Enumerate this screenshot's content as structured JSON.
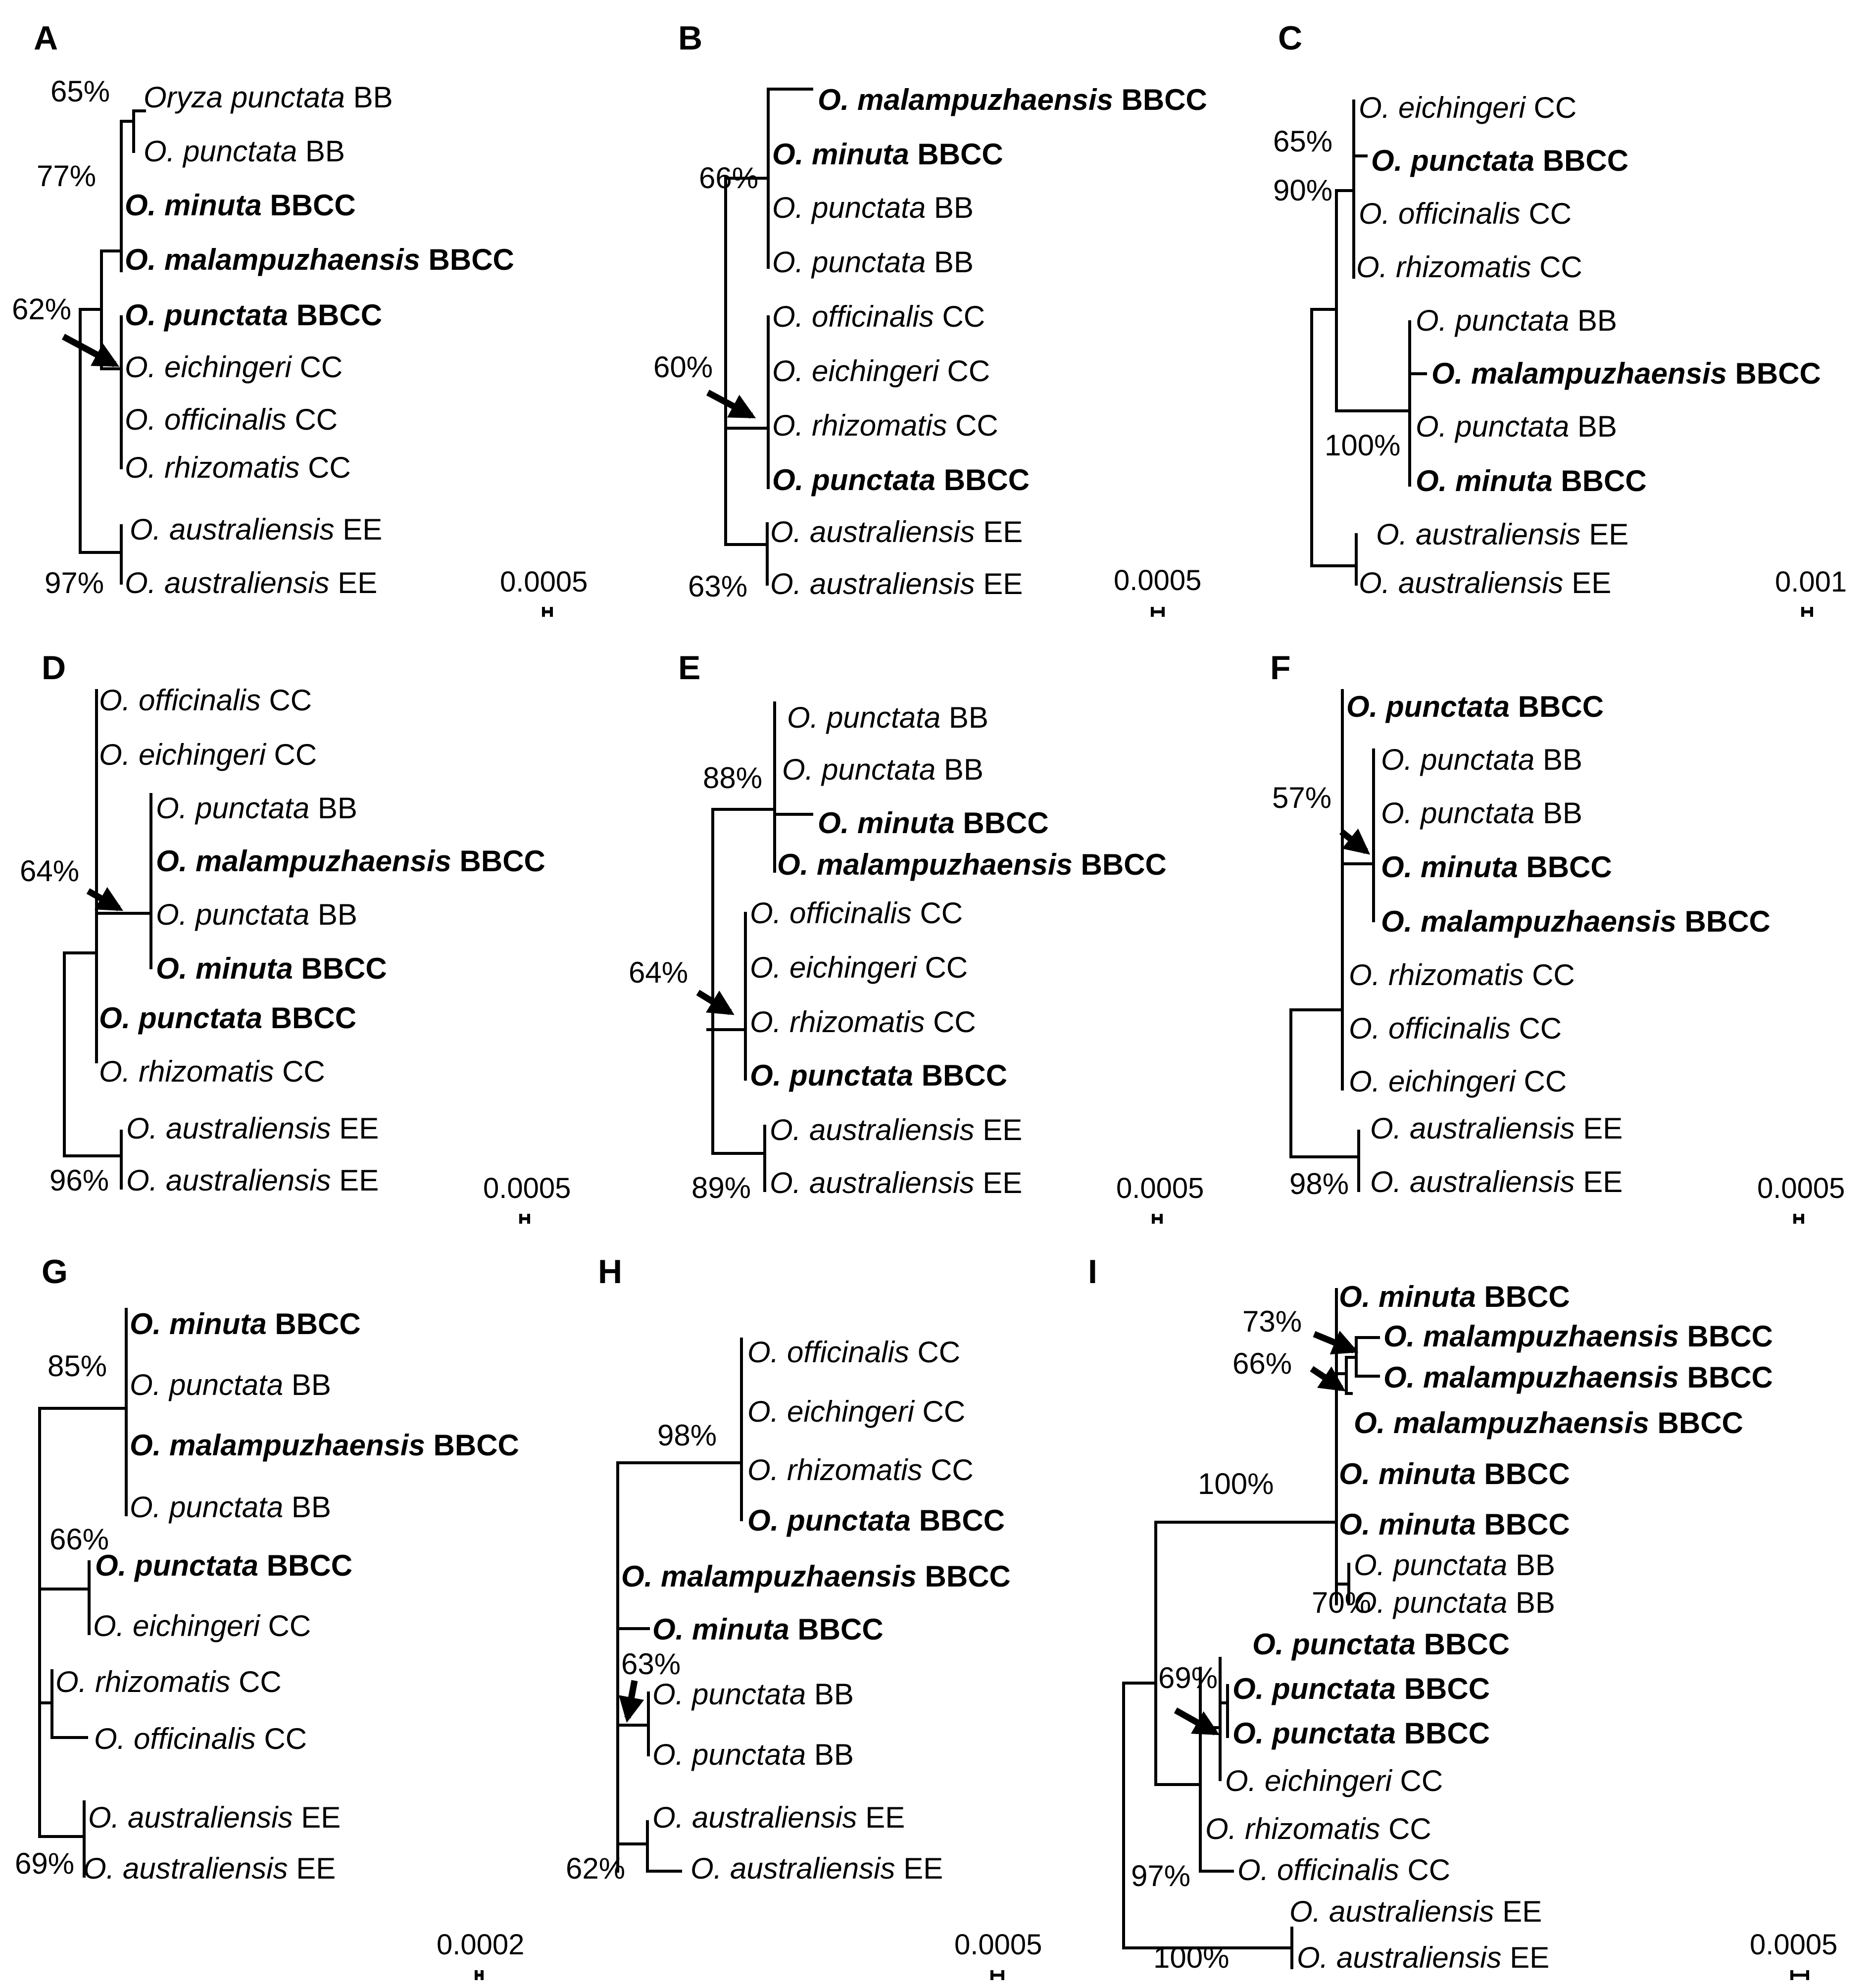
{
  "panels": [
    {
      "id": "A",
      "scale": "0.0005",
      "taxa": [
        {
          "genus": "Oryza",
          "species": "punctata",
          "genome": "BB",
          "bold": false
        },
        {
          "genus": "O.",
          "species": "punctata",
          "genome": "BB",
          "bold": false
        },
        {
          "genus": "O.",
          "species": "minuta",
          "genome": "BBCC",
          "bold": true
        },
        {
          "genus": "O.",
          "species": "malampuzhaensis",
          "genome": "BBCC",
          "bold": true
        },
        {
          "genus": "O.",
          "species": "punctata",
          "genome": "BBCC",
          "bold": true
        },
        {
          "genus": "O.",
          "species": "eichingeri",
          "genome": "CC",
          "bold": false
        },
        {
          "genus": "O.",
          "species": "officinalis",
          "genome": "CC",
          "bold": false
        },
        {
          "genus": "O.",
          "species": "rhizomatis",
          "genome": "CC",
          "bold": false
        },
        {
          "genus": "O.",
          "species": "australiensis",
          "genome": "EE",
          "bold": false
        },
        {
          "genus": "O.",
          "species": "australiensis",
          "genome": "EE",
          "bold": false
        }
      ],
      "support": [
        "65%",
        "77%",
        "62%",
        "97%"
      ]
    },
    {
      "id": "B",
      "scale": "0.0005",
      "taxa": [
        {
          "genus": "O.",
          "species": "malampuzhaensis",
          "genome": "BBCC",
          "bold": true
        },
        {
          "genus": "O.",
          "species": "minuta",
          "genome": "BBCC",
          "bold": true
        },
        {
          "genus": "O.",
          "species": "punctata",
          "genome": "BB",
          "bold": false
        },
        {
          "genus": "O.",
          "species": "punctata",
          "genome": "BB",
          "bold": false
        },
        {
          "genus": "O.",
          "species": "officinalis",
          "genome": "CC",
          "bold": false
        },
        {
          "genus": "O.",
          "species": "eichingeri",
          "genome": "CC",
          "bold": false
        },
        {
          "genus": "O.",
          "species": "rhizomatis",
          "genome": "CC",
          "bold": false
        },
        {
          "genus": "O.",
          "species": "punctata",
          "genome": "BBCC",
          "bold": true
        },
        {
          "genus": "O.",
          "species": "australiensis",
          "genome": "EE",
          "bold": false
        },
        {
          "genus": "O.",
          "species": "australiensis",
          "genome": "EE",
          "bold": false
        }
      ],
      "support": [
        "66%",
        "60%",
        "63%"
      ]
    },
    {
      "id": "C",
      "scale": "0.001",
      "taxa": [
        {
          "genus": "O.",
          "species": "eichingeri",
          "genome": "CC",
          "bold": false
        },
        {
          "genus": "O.",
          "species": "punctata",
          "genome": "BBCC",
          "bold": true
        },
        {
          "genus": "O.",
          "species": "officinalis",
          "genome": "CC",
          "bold": false
        },
        {
          "genus": "O.",
          "species": "rhizomatis",
          "genome": "CC",
          "bold": false
        },
        {
          "genus": "O.",
          "species": "punctata",
          "genome": "BB",
          "bold": false
        },
        {
          "genus": "O.",
          "species": "malampuzhaensis",
          "genome": "BBCC",
          "bold": true
        },
        {
          "genus": "O.",
          "species": "punctata",
          "genome": "BB",
          "bold": false
        },
        {
          "genus": "O.",
          "species": "minuta",
          "genome": "BBCC",
          "bold": true
        },
        {
          "genus": "O.",
          "species": "australiensis",
          "genome": "EE",
          "bold": false
        },
        {
          "genus": "O.",
          "species": "australiensis",
          "genome": "EE",
          "bold": false
        }
      ],
      "support": [
        "65%",
        "90%",
        "100%"
      ]
    },
    {
      "id": "D",
      "scale": "0.0005",
      "taxa": [
        {
          "genus": "O.",
          "species": "officinalis",
          "genome": "CC",
          "bold": false
        },
        {
          "genus": "O.",
          "species": "eichingeri",
          "genome": "CC",
          "bold": false
        },
        {
          "genus": "O.",
          "species": "punctata",
          "genome": "BB",
          "bold": false
        },
        {
          "genus": "O.",
          "species": "malampuzhaensis",
          "genome": "BBCC",
          "bold": true
        },
        {
          "genus": "O.",
          "species": "punctata",
          "genome": "BB",
          "bold": false
        },
        {
          "genus": "O.",
          "species": "minuta",
          "genome": "BBCC",
          "bold": true
        },
        {
          "genus": "O.",
          "species": "punctata",
          "genome": "BBCC",
          "bold": true
        },
        {
          "genus": "O.",
          "species": "rhizomatis",
          "genome": "CC",
          "bold": false
        },
        {
          "genus": "O.",
          "species": "australiensis",
          "genome": "EE",
          "bold": false
        },
        {
          "genus": "O.",
          "species": "australiensis",
          "genome": "EE",
          "bold": false
        }
      ],
      "support": [
        "64%",
        "96%"
      ]
    },
    {
      "id": "E",
      "scale": "0.0005",
      "taxa": [
        {
          "genus": "O.",
          "species": "punctata",
          "genome": "BB",
          "bold": false
        },
        {
          "genus": "O.",
          "species": "punctata",
          "genome": "BB",
          "bold": false
        },
        {
          "genus": "O.",
          "species": "minuta",
          "genome": "BBCC",
          "bold": true
        },
        {
          "genus": "O.",
          "species": "malampuzhaensis",
          "genome": "BBCC",
          "bold": true
        },
        {
          "genus": "O.",
          "species": "officinalis",
          "genome": "CC",
          "bold": false
        },
        {
          "genus": "O.",
          "species": "eichingeri",
          "genome": "CC",
          "bold": false
        },
        {
          "genus": "O.",
          "species": "rhizomatis",
          "genome": "CC",
          "bold": false
        },
        {
          "genus": "O.",
          "species": "punctata",
          "genome": "BBCC",
          "bold": true
        },
        {
          "genus": "O.",
          "species": "australiensis",
          "genome": "EE",
          "bold": false
        },
        {
          "genus": "O.",
          "species": "australiensis",
          "genome": "EE",
          "bold": false
        }
      ],
      "support": [
        "88%",
        "64%",
        "89%"
      ]
    },
    {
      "id": "F",
      "scale": "0.0005",
      "taxa": [
        {
          "genus": "O.",
          "species": "punctata",
          "genome": "BBCC",
          "bold": true
        },
        {
          "genus": "O.",
          "species": "punctata",
          "genome": "BB",
          "bold": false
        },
        {
          "genus": "O.",
          "species": "punctata",
          "genome": "BB",
          "bold": false
        },
        {
          "genus": "O.",
          "species": "minuta",
          "genome": "BBCC",
          "bold": true
        },
        {
          "genus": "O.",
          "species": "malampuzhaensis",
          "genome": "BBCC",
          "bold": true
        },
        {
          "genus": "O.",
          "species": "rhizomatis",
          "genome": "CC",
          "bold": false
        },
        {
          "genus": "O.",
          "species": "officinalis",
          "genome": "CC",
          "bold": false
        },
        {
          "genus": "O.",
          "species": "eichingeri",
          "genome": "CC",
          "bold": false
        },
        {
          "genus": "O.",
          "species": "australiensis",
          "genome": "EE",
          "bold": false
        },
        {
          "genus": "O.",
          "species": "australiensis",
          "genome": "EE",
          "bold": false
        }
      ],
      "support": [
        "57%",
        "98%"
      ]
    },
    {
      "id": "G",
      "scale": "0.0002",
      "taxa": [
        {
          "genus": "O.",
          "species": "minuta",
          "genome": "BBCC",
          "bold": true
        },
        {
          "genus": "O.",
          "species": "punctata",
          "genome": "BB",
          "bold": false
        },
        {
          "genus": "O.",
          "species": "malampuzhaensis",
          "genome": "BBCC",
          "bold": true
        },
        {
          "genus": "O.",
          "species": "punctata",
          "genome": "BB",
          "bold": false
        },
        {
          "genus": "O.",
          "species": "punctata",
          "genome": "BBCC",
          "bold": true
        },
        {
          "genus": "O.",
          "species": "eichingeri",
          "genome": "CC",
          "bold": false
        },
        {
          "genus": "O.",
          "species": "rhizomatis",
          "genome": "CC",
          "bold": false
        },
        {
          "genus": "O.",
          "species": "officinalis",
          "genome": "CC",
          "bold": false
        },
        {
          "genus": "O.",
          "species": "australiensis",
          "genome": "EE",
          "bold": false
        },
        {
          "genus": "O.",
          "species": "australiensis",
          "genome": "EE",
          "bold": false
        }
      ],
      "support": [
        "85%",
        "66%",
        "69%"
      ]
    },
    {
      "id": "H",
      "scale": "0.0005",
      "taxa": [
        {
          "genus": "O.",
          "species": "officinalis",
          "genome": "CC",
          "bold": false
        },
        {
          "genus": "O.",
          "species": "eichingeri",
          "genome": "CC",
          "bold": false
        },
        {
          "genus": "O.",
          "species": "rhizomatis",
          "genome": "CC",
          "bold": false
        },
        {
          "genus": "O.",
          "species": "punctata",
          "genome": "BBCC",
          "bold": true
        },
        {
          "genus": "O.",
          "species": "malampuzhaensis",
          "genome": "BBCC",
          "bold": true
        },
        {
          "genus": "O.",
          "species": "minuta",
          "genome": "BBCC",
          "bold": true
        },
        {
          "genus": "O.",
          "species": "punctata",
          "genome": "BB",
          "bold": false
        },
        {
          "genus": "O.",
          "species": "punctata",
          "genome": "BB",
          "bold": false
        },
        {
          "genus": "O.",
          "species": "australiensis",
          "genome": "EE",
          "bold": false
        },
        {
          "genus": "O.",
          "species": "australiensis",
          "genome": "EE",
          "bold": false
        }
      ],
      "support": [
        "98%",
        "63%",
        "62%"
      ]
    },
    {
      "id": "I",
      "scale": "0.0005",
      "taxa": [
        {
          "genus": "O.",
          "species": "minuta",
          "genome": "BBCC",
          "bold": true
        },
        {
          "genus": "O.",
          "species": "malampuzhaensis",
          "genome": "BBCC",
          "bold": true
        },
        {
          "genus": "O.",
          "species": "malampuzhaensis",
          "genome": "BBCC",
          "bold": true
        },
        {
          "genus": "O.",
          "species": "malampuzhaensis",
          "genome": "BBCC",
          "bold": true
        },
        {
          "genus": "O.",
          "species": "minuta",
          "genome": "BBCC",
          "bold": true
        },
        {
          "genus": "O.",
          "species": "minuta",
          "genome": "BBCC",
          "bold": true
        },
        {
          "genus": "O.",
          "species": "punctata",
          "genome": "BB",
          "bold": false
        },
        {
          "genus": "O.",
          "species": "punctata",
          "genome": "BB",
          "bold": false
        },
        {
          "genus": "O.",
          "species": "punctata",
          "genome": "BBCC",
          "bold": true
        },
        {
          "genus": "O.",
          "species": "punctata",
          "genome": "BBCC",
          "bold": true
        },
        {
          "genus": "O.",
          "species": "punctata",
          "genome": "BBCC",
          "bold": true
        },
        {
          "genus": "O.",
          "species": "eichingeri",
          "genome": "CC",
          "bold": false
        },
        {
          "genus": "O.",
          "species": "rhizomatis",
          "genome": "CC",
          "bold": false
        },
        {
          "genus": "O.",
          "species": "officinalis",
          "genome": "CC",
          "bold": false
        },
        {
          "genus": "O.",
          "species": "australiensis",
          "genome": "EE",
          "bold": false
        },
        {
          "genus": "O.",
          "species": "australiensis",
          "genome": "EE",
          "bold": false
        }
      ],
      "support": [
        "73%",
        "66%",
        "100%",
        "70%",
        "69%",
        "97%",
        "100%"
      ]
    }
  ]
}
